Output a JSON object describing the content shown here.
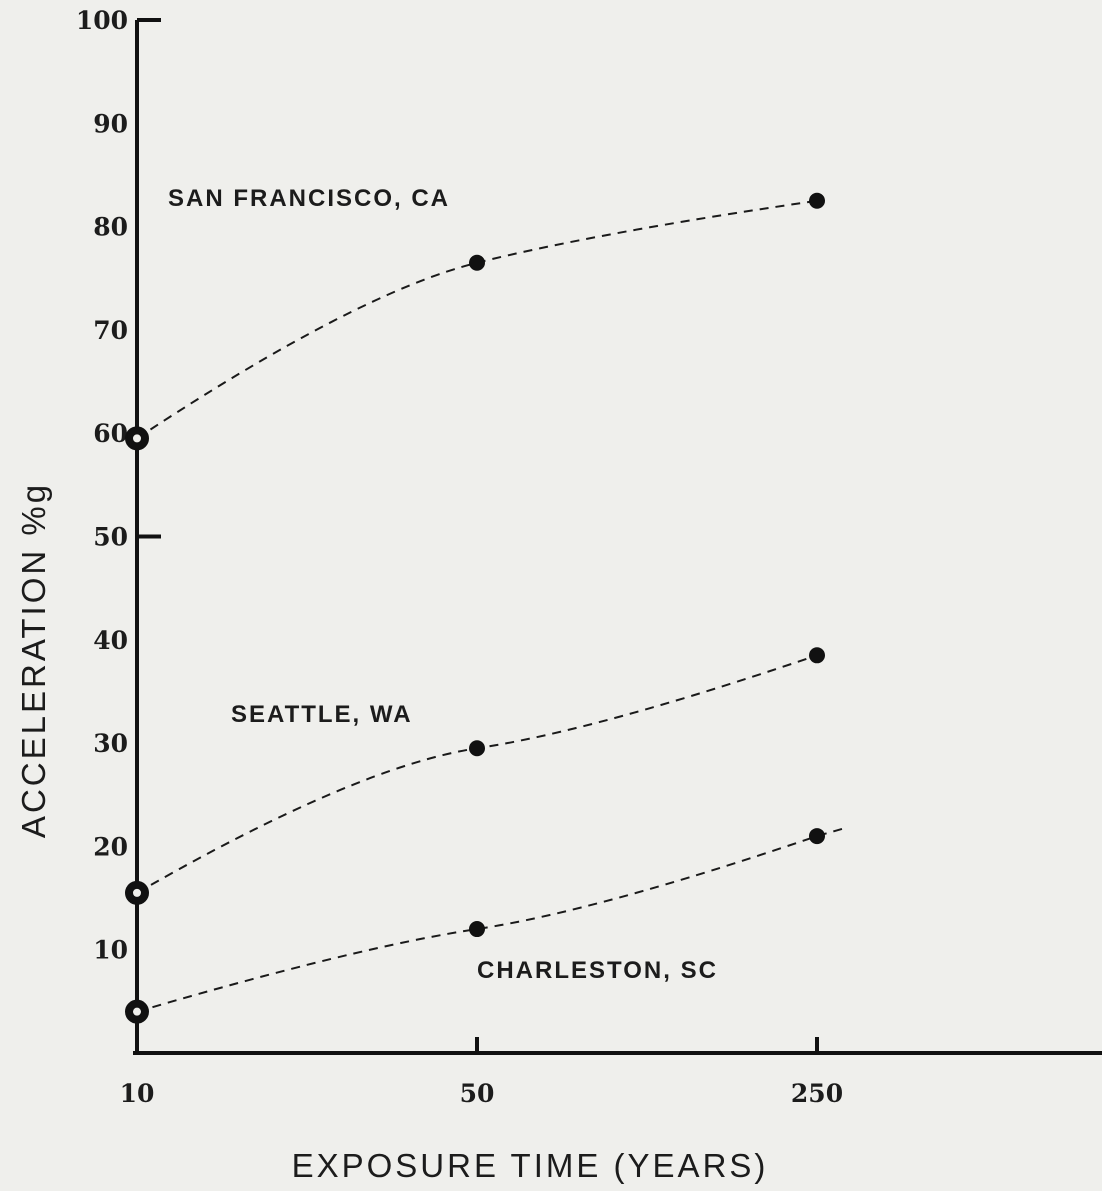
{
  "chart_data": {
    "type": "line",
    "title": "",
    "xlabel": "EXPOSURE TIME (YEARS)",
    "ylabel": "ACCELERATION %g",
    "x_ticks": [
      "10",
      "50",
      "250"
    ],
    "y_ticks": [
      "10",
      "20",
      "30",
      "40",
      "50",
      "60",
      "70",
      "80",
      "90",
      "100"
    ],
    "ylim": [
      0,
      100
    ],
    "x_scale": "log",
    "grid": false,
    "line_style": "dashed",
    "series": [
      {
        "name": "SAN FRANCISCO, CA",
        "x": [
          10,
          50,
          250
        ],
        "y": [
          59.5,
          76.5,
          82.5
        ]
      },
      {
        "name": "SEATTLE, WA",
        "x": [
          10,
          50,
          250
        ],
        "y": [
          15.5,
          29.5,
          38.5
        ]
      },
      {
        "name": "CHARLESTON, SC",
        "x": [
          10,
          50,
          250
        ],
        "y": [
          4,
          12,
          21
        ]
      }
    ],
    "colors": {
      "ink": "#111111",
      "background": "#efefec"
    }
  }
}
